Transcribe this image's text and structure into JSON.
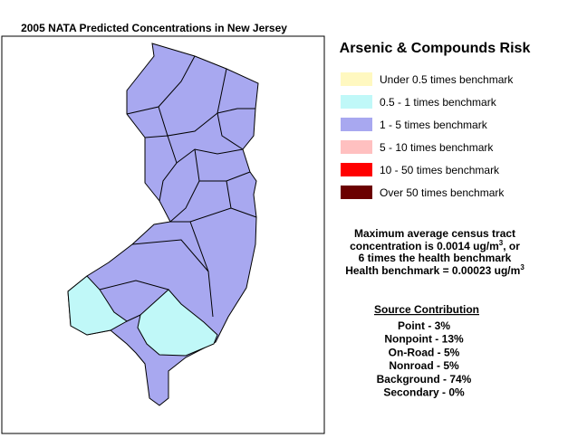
{
  "header": {
    "title": "2005 NATA Predicted Concentrations in New Jersey"
  },
  "legend": {
    "title": "Arsenic & Compounds Risk",
    "items": [
      {
        "label": "Under 0.5 times benchmark",
        "color": "#fff8c0"
      },
      {
        "label": "0.5 - 1 times benchmark",
        "color": "#c0f8f8"
      },
      {
        "label": "1 - 5 times benchmark",
        "color": "#a8a8f0"
      },
      {
        "label": "5 - 10 times benchmark",
        "color": "#ffc0c0"
      },
      {
        "label": "10 - 50 times benchmark",
        "color": "#ff0000"
      },
      {
        "label": "Over 50 times benchmark",
        "color": "#6b0000"
      }
    ]
  },
  "info": {
    "line1": "Maximum average census tract",
    "line2": {
      "pre": "concentration is 0.0014 ug/m",
      "sup": "3",
      "post": ", or"
    },
    "line3": "6 times the health benchmark",
    "line4": {
      "pre": "Health benchmark = 0.00023 ug/m",
      "sup": "3"
    }
  },
  "sources": {
    "title": "Source Contribution",
    "items": [
      "Point - 3%",
      "Nonpoint - 13%",
      "On-Road - 5%",
      "Nonroad - 5%",
      "Background - 74%",
      "Secondary - 0%"
    ]
  }
}
